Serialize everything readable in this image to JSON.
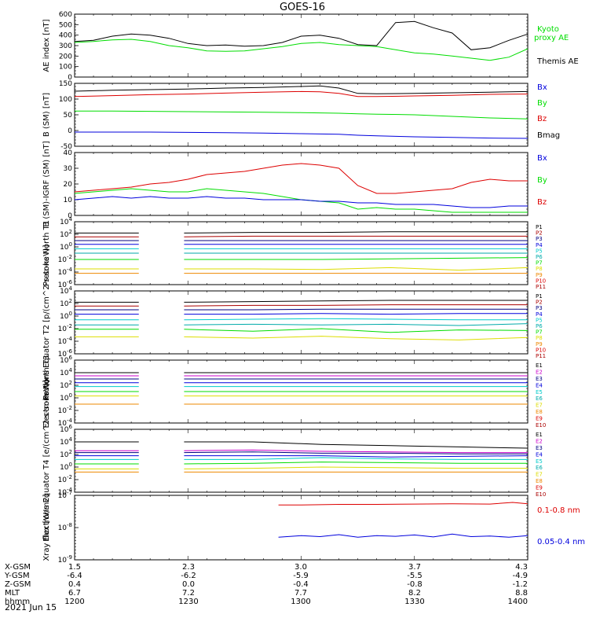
{
  "title": "GOES-16",
  "date_label": "2021 Jun 15",
  "colors": {
    "black": "#000000",
    "red": "#dd0000",
    "green": "#00dd00",
    "blue": "#0000dd",
    "navy": "#000080",
    "magenta": "#cc00cc",
    "cyan": "#00cccc",
    "teal": "#00aaaa",
    "yellow": "#dddd00",
    "orange": "#ee8800",
    "darkred": "#aa0000"
  },
  "orbit": {
    "rows": [
      {
        "label": "X-GSM",
        "values": [
          "1.5",
          "2.3",
          "3.0",
          "3.7",
          "4.3"
        ]
      },
      {
        "label": "Y-GSM",
        "values": [
          "-6.4",
          "-6.2",
          "-5.9",
          "-5.5",
          "-4.9"
        ]
      },
      {
        "label": "Z-GSM",
        "values": [
          "0.4",
          "0.0",
          "-0.4",
          "-0.8",
          "-1.2"
        ]
      },
      {
        "label": "MLT",
        "values": [
          "6.7",
          "7.2",
          "7.7",
          "8.2",
          "8.8"
        ]
      },
      {
        "label": "hhmm",
        "values": [
          "1200",
          "1230",
          "1300",
          "1330",
          "1400"
        ]
      }
    ]
  },
  "chart_data": [
    {
      "type": "line",
      "id": "ae",
      "ylabel": "AE index [nT]",
      "ylim": [
        0,
        600
      ],
      "ticks": [
        "0",
        "100",
        "200",
        "300",
        "400",
        "500",
        "600"
      ],
      "legend": [
        "Kyoto proxy AE",
        "Themis AE"
      ],
      "x": [
        1200,
        1205,
        1210,
        1215,
        1220,
        1225,
        1230,
        1235,
        1240,
        1245,
        1250,
        1255,
        1300,
        1305,
        1310,
        1315,
        1320,
        1325,
        1330,
        1335,
        1340,
        1345,
        1350,
        1355,
        1400
      ],
      "series": [
        {
          "name": "Themis AE",
          "color": "black",
          "values": [
            340,
            350,
            390,
            410,
            400,
            370,
            320,
            300,
            305,
            295,
            300,
            330,
            390,
            400,
            370,
            310,
            300,
            520,
            530,
            470,
            420,
            260,
            280,
            350,
            410
          ]
        },
        {
          "name": "Kyoto proxy AE",
          "color": "green",
          "values": [
            330,
            340,
            355,
            360,
            340,
            300,
            280,
            250,
            245,
            250,
            270,
            290,
            320,
            330,
            310,
            300,
            290,
            260,
            230,
            220,
            200,
            180,
            160,
            190,
            270
          ]
        }
      ]
    },
    {
      "type": "line",
      "id": "bsm",
      "ylabel": "B (SM) [nT]",
      "ylim": [
        -50,
        150
      ],
      "ticks": [
        "-50",
        "0",
        "50",
        "100",
        "150"
      ],
      "legend": [
        "Bx",
        "By",
        "Bz",
        "Bmag"
      ],
      "x": [
        1200,
        1210,
        1220,
        1230,
        1240,
        1250,
        1300,
        1305,
        1310,
        1315,
        1320,
        1330,
        1340,
        1350,
        1400
      ],
      "series": [
        {
          "name": "Bmag",
          "color": "black",
          "values": [
            125,
            128,
            130,
            132,
            135,
            137,
            140,
            142,
            135,
            118,
            117,
            118,
            120,
            122,
            124
          ]
        },
        {
          "name": "Bz",
          "color": "red",
          "values": [
            108,
            111,
            114,
            116,
            119,
            122,
            124,
            123,
            118,
            108,
            108,
            110,
            112,
            115,
            116
          ]
        },
        {
          "name": "By",
          "color": "green",
          "values": [
            62,
            62,
            61,
            60,
            59,
            58,
            57,
            56,
            55,
            53,
            52,
            50,
            45,
            40,
            37
          ]
        },
        {
          "name": "Bx",
          "color": "blue",
          "values": [
            -5,
            -5,
            -5,
            -6,
            -7,
            -8,
            -10,
            -11,
            -12,
            -15,
            -17,
            -20,
            -22,
            -24,
            -25
          ]
        }
      ]
    },
    {
      "type": "line",
      "id": "bdiff",
      "ylabel": "B (SM)-IGRF (SM) [nT]",
      "ylim": [
        0,
        40
      ],
      "ticks": [
        "0",
        "10",
        "20",
        "30",
        "40"
      ],
      "legend": [
        "Bx",
        "By",
        "Bz"
      ],
      "x": [
        1200,
        1205,
        1210,
        1215,
        1220,
        1225,
        1230,
        1235,
        1240,
        1245,
        1250,
        1255,
        1300,
        1305,
        1310,
        1315,
        1320,
        1325,
        1330,
        1335,
        1340,
        1345,
        1350,
        1355,
        1400
      ],
      "series": [
        {
          "name": "Bz",
          "color": "red",
          "values": [
            15,
            16,
            17,
            18,
            20,
            21,
            23,
            26,
            27,
            28,
            30,
            32,
            33,
            32,
            30,
            19,
            14,
            14,
            15,
            16,
            17,
            21,
            23,
            22,
            22
          ]
        },
        {
          "name": "By",
          "color": "green",
          "values": [
            14,
            15,
            16,
            17,
            16,
            15,
            15,
            17,
            16,
            15,
            14,
            12,
            10,
            9,
            8,
            4,
            5,
            4,
            4,
            3,
            2,
            2,
            2,
            2,
            2
          ]
        },
        {
          "name": "Bx",
          "color": "blue",
          "values": [
            10,
            11,
            12,
            11,
            12,
            11,
            11,
            12,
            11,
            11,
            10,
            10,
            10,
            9,
            9,
            8,
            8,
            7,
            7,
            7,
            6,
            5,
            5,
            6,
            6
          ]
        }
      ]
    },
    {
      "type": "line",
      "id": "prot-north",
      "ylabel": "Protons North T1",
      "scale": "log",
      "ylim": [
        -6,
        4
      ],
      "ticks": [
        "10^4",
        "10^2",
        "10^0",
        "10^-2",
        "10^-4",
        "10^-6"
      ],
      "legend": [
        "P1",
        "P2",
        "P3",
        "P4",
        "P5",
        "P6",
        "P7",
        "P8",
        "P9",
        "P10",
        "P11"
      ],
      "gap": [
        1217,
        1229
      ],
      "series": [
        {
          "name": "P1",
          "color": "black",
          "values_log": [
            2.2,
            2.2,
            2.3,
            2.3,
            2.4,
            2.4,
            2.4
          ]
        },
        {
          "name": "P2",
          "color": "darkred",
          "values_log": [
            1.6,
            1.6,
            1.7,
            1.7,
            1.7,
            1.7,
            1.7
          ]
        },
        {
          "name": "P3",
          "color": "navy",
          "values_log": [
            1.0,
            1.0,
            1.0,
            1.0,
            1.0,
            1.0,
            1.0
          ]
        },
        {
          "name": "P4",
          "color": "blue",
          "values_log": [
            0.4,
            0.4,
            0.4,
            0.4,
            0.4,
            0.4,
            0.4
          ]
        },
        {
          "name": "P5",
          "color": "cyan",
          "values_log": [
            -0.3,
            -0.3,
            -0.3,
            -0.3,
            -0.3,
            -0.3,
            -0.3
          ]
        },
        {
          "name": "P6",
          "color": "teal",
          "values_log": [
            -1.0,
            -1.0,
            -1.0,
            -1.0,
            -1.0,
            -1.0,
            -1.0
          ]
        },
        {
          "name": "P7",
          "color": "green",
          "values_log": [
            -2.0,
            -2.0,
            -2.0,
            -2.0,
            -1.9,
            -1.8,
            -1.7
          ]
        },
        {
          "name": "P8",
          "color": "yellow",
          "values_log": [
            -3.5,
            -3.5,
            -3.5,
            -3.6,
            -3.3,
            -3.7,
            -3.3
          ]
        },
        {
          "name": "P9",
          "color": "orange",
          "values_log": [
            -4.2,
            -4.2,
            -4.2,
            -4.2,
            -4.2,
            -4.2,
            -4.2
          ]
        }
      ]
    },
    {
      "type": "line",
      "id": "prot-eq",
      "ylabel": "Protons Equator T2 [p/(cm^2-s-sr-keV)]",
      "scale": "log",
      "ylim": [
        -6,
        4
      ],
      "ticks": [
        "10^4",
        "10^2",
        "10^0",
        "10^-2",
        "10^-4",
        "10^-6"
      ],
      "legend": [
        "P1",
        "P2",
        "P3",
        "P4",
        "P5",
        "P6",
        "P7",
        "P8",
        "P9",
        "P10",
        "P11"
      ],
      "gap": [
        1217,
        1229
      ],
      "series": [
        {
          "name": "P1",
          "color": "black",
          "values_log": [
            2.2,
            2.2,
            2.3,
            2.4,
            2.5,
            2.5,
            2.5
          ]
        },
        {
          "name": "P2",
          "color": "darkred",
          "values_log": [
            1.6,
            1.6,
            1.7,
            1.7,
            1.8,
            1.8,
            1.8
          ]
        },
        {
          "name": "P3",
          "color": "navy",
          "values_log": [
            1.0,
            1.0,
            1.0,
            1.1,
            1.1,
            1.1,
            1.1
          ]
        },
        {
          "name": "P4",
          "color": "blue",
          "values_log": [
            0.3,
            0.3,
            0.3,
            0.4,
            0.3,
            0.4,
            0.4
          ]
        },
        {
          "name": "P5",
          "color": "cyan",
          "values_log": [
            -0.6,
            -0.6,
            -0.5,
            -0.4,
            -0.5,
            -0.6,
            -0.6
          ]
        },
        {
          "name": "P6",
          "color": "teal",
          "values_log": [
            -1.4,
            -1.4,
            -1.3,
            -1.4,
            -1.3,
            -1.5,
            -1.2
          ]
        },
        {
          "name": "P7",
          "color": "green",
          "values_log": [
            -2.1,
            -2.1,
            -2.4,
            -2.0,
            -2.6,
            -2.2,
            -2.3
          ]
        },
        {
          "name": "P8",
          "color": "yellow",
          "values_log": [
            -3.3,
            -3.3,
            -3.5,
            -3.2,
            -3.6,
            -3.8,
            -3.4
          ]
        }
      ]
    },
    {
      "type": "line",
      "id": "elec-north",
      "ylabel": "Electrons North T3",
      "scale": "log",
      "ylim": [
        -4,
        6
      ],
      "ticks": [
        "10^6",
        "10^4",
        "10^2",
        "10^0",
        "10^-2",
        "10^-4"
      ],
      "legend": [
        "E1",
        "E2",
        "E3",
        "E4",
        "E5",
        "E6",
        "E7",
        "E8",
        "E9",
        "E10"
      ],
      "gap": [
        1217,
        1229
      ],
      "series": [
        {
          "name": "E1",
          "color": "black",
          "values_log": [
            4.0,
            4.0,
            4.0,
            4.0,
            4.0,
            4.0,
            4.0
          ]
        },
        {
          "name": "E2",
          "color": "magenta",
          "values_log": [
            3.5,
            3.5,
            3.5,
            3.5,
            3.5,
            3.5,
            3.5
          ]
        },
        {
          "name": "E3",
          "color": "navy",
          "values_log": [
            3.0,
            3.0,
            3.0,
            3.0,
            3.0,
            3.0,
            3.0
          ]
        },
        {
          "name": "E4",
          "color": "blue",
          "values_log": [
            2.4,
            2.4,
            2.4,
            2.4,
            2.4,
            2.4,
            2.4
          ]
        },
        {
          "name": "E5",
          "color": "cyan",
          "values_log": [
            1.8,
            1.8,
            1.8,
            1.8,
            1.8,
            1.8,
            1.8
          ]
        },
        {
          "name": "E6",
          "color": "green",
          "values_log": [
            1.0,
            1.0,
            1.0,
            1.0,
            1.0,
            1.0,
            1.0
          ]
        },
        {
          "name": "E7",
          "color": "yellow",
          "values_log": [
            0.3,
            0.3,
            0.3,
            0.3,
            0.3,
            0.3,
            0.3
          ]
        },
        {
          "name": "E8",
          "color": "orange",
          "values_log": [
            -1.0,
            -1.0,
            -1.0,
            -1.0,
            -1.0,
            -1.0,
            -1.0
          ]
        }
      ]
    },
    {
      "type": "line",
      "id": "elec-eq",
      "ylabel": "Electrons Equator T4 [e/(cm^2-s-sr-keV)]",
      "scale": "log",
      "ylim": [
        -4,
        6
      ],
      "ticks": [
        "10^6",
        "10^4",
        "10^2",
        "10^0",
        "10^-2",
        "10^-4"
      ],
      "legend": [
        "E1",
        "E2",
        "E3",
        "E4",
        "E5",
        "E6",
        "E7",
        "E8",
        "E9",
        "E10"
      ],
      "gap": [
        1217,
        1229
      ],
      "series": [
        {
          "name": "E1",
          "color": "black",
          "values_log": [
            4.0,
            4.0,
            4.0,
            3.6,
            3.4,
            3.2,
            3.0
          ]
        },
        {
          "name": "E2",
          "color": "magenta",
          "values_log": [
            2.6,
            2.6,
            2.7,
            2.5,
            2.4,
            2.3,
            2.3
          ]
        },
        {
          "name": "E3",
          "color": "navy",
          "values_log": [
            2.3,
            2.3,
            2.4,
            2.2,
            2.2,
            2.1,
            2.1
          ]
        },
        {
          "name": "E4",
          "color": "blue",
          "values_log": [
            1.8,
            1.8,
            1.8,
            1.8,
            1.6,
            1.7,
            1.8
          ]
        },
        {
          "name": "E5",
          "color": "cyan",
          "values_log": [
            1.2,
            1.2,
            1.2,
            1.5,
            1.3,
            1.2,
            1.2
          ]
        },
        {
          "name": "E6",
          "color": "green",
          "values_log": [
            0.5,
            0.5,
            0.6,
            0.8,
            0.7,
            0.6,
            0.6
          ]
        },
        {
          "name": "E7",
          "color": "yellow",
          "values_log": [
            -0.3,
            -0.3,
            -0.2,
            0.0,
            -0.1,
            -0.2,
            -0.2
          ]
        },
        {
          "name": "E8",
          "color": "orange",
          "values_log": [
            -0.8,
            -0.8,
            -0.8,
            -0.8,
            -0.8,
            -0.8,
            -0.8
          ]
        }
      ]
    },
    {
      "type": "line",
      "id": "xray",
      "ylabel": "Xray flux [W/m2]",
      "scale": "log",
      "ylim": [
        -9,
        -7
      ],
      "ticks": [
        "10^-7",
        "10^-8",
        "10^-9"
      ],
      "legend": [
        "0.1-0.8 nm",
        "0.05-0.4 nm"
      ],
      "series": [
        {
          "name": "0.1-0.8 nm",
          "color": "red",
          "x": [
            1254,
            1300,
            1310,
            1320,
            1330,
            1340,
            1350,
            1356,
            1400
          ],
          "values_log": [
            -7.3,
            -7.3,
            -7.28,
            -7.28,
            -7.27,
            -7.26,
            -7.27,
            -7.22,
            -7.26
          ]
        },
        {
          "name": "0.05-0.4 nm",
          "color": "blue",
          "x": [
            1254,
            1300,
            1305,
            1310,
            1315,
            1320,
            1325,
            1330,
            1335,
            1340,
            1345,
            1350,
            1355,
            1400
          ],
          "values_log": [
            -8.3,
            -8.25,
            -8.28,
            -8.22,
            -8.3,
            -8.25,
            -8.27,
            -8.23,
            -8.29,
            -8.2,
            -8.28,
            -8.26,
            -8.3,
            -8.25
          ]
        }
      ]
    }
  ]
}
